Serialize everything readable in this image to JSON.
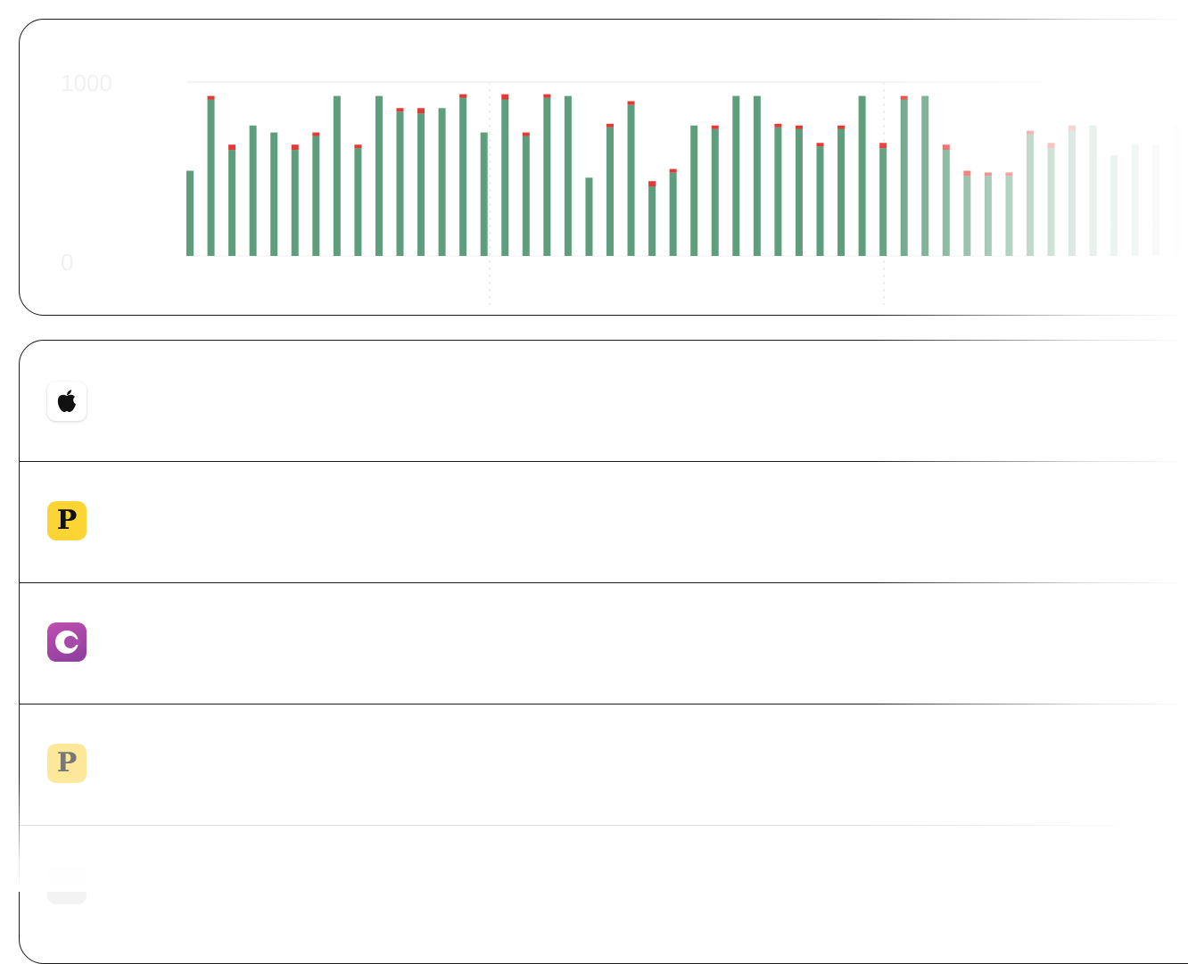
{
  "chart_data": {
    "type": "bar",
    "stacked": true,
    "ylim": [
      0,
      1000
    ],
    "y_ticks": [
      "1000",
      "0"
    ],
    "grid": true,
    "series": [
      {
        "color": "#5e9e7c",
        "values": [
          490,
          900,
          610,
          750,
          710,
          610,
          690,
          920,
          620,
          920,
          830,
          820,
          850,
          910,
          710,
          900,
          690,
          910,
          920,
          450,
          740,
          870,
          400,
          480,
          750,
          730,
          920,
          920,
          740,
          730,
          630,
          730,
          920,
          620,
          900,
          920,
          610,
          460,
          460,
          460,
          700,
          620,
          720,
          750,
          580,
          640,
          640,
          750
        ]
      },
      {
        "color": "#e53935",
        "values": [
          0,
          20,
          30,
          0,
          0,
          30,
          20,
          0,
          20,
          0,
          20,
          30,
          0,
          20,
          0,
          30,
          20,
          20,
          0,
          0,
          20,
          20,
          30,
          20,
          0,
          20,
          0,
          0,
          20,
          20,
          20,
          20,
          0,
          30,
          20,
          0,
          30,
          30,
          20,
          20,
          20,
          30,
          30,
          0,
          0,
          0,
          0,
          0
        ]
      }
    ]
  },
  "apps": [
    {
      "icon": "apple-icon",
      "color": "#111111"
    },
    {
      "icon": "p-letter-icon",
      "letter": "P",
      "color": "#fcd535"
    },
    {
      "icon": "crescent-c-icon",
      "color": "#a84aa8"
    },
    {
      "icon": "p-letter-icon",
      "letter": "P",
      "color": "#fde899"
    },
    {
      "icon": "crescent-c-icon",
      "color": "#f3f3f3"
    }
  ]
}
